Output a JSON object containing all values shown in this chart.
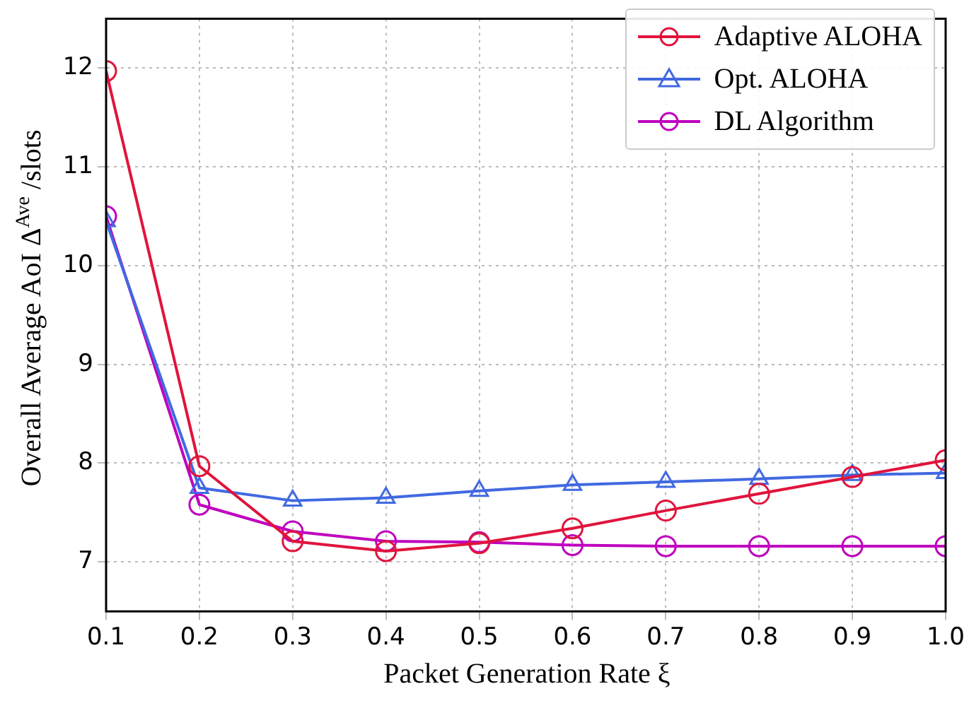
{
  "chart_data": {
    "type": "line",
    "xlabel": "Packet Generation Rate ξ",
    "ylabel": "Overall Average AoI Δ$^{Ave}$ /slots",
    "x": [
      0.1,
      0.2,
      0.3,
      0.4,
      0.5,
      0.6,
      0.7,
      0.8,
      0.9,
      1.0
    ],
    "series": [
      {
        "name": "Adaptive ALOHA",
        "color": "#e0143c",
        "marker": "circle",
        "values": [
          11.97,
          7.97,
          7.21,
          7.11,
          7.19,
          7.34,
          7.52,
          7.69,
          7.86,
          8.03
        ]
      },
      {
        "name": "Opt. ALOHA",
        "color": "#4169e1",
        "marker": "triangle",
        "values": [
          10.45,
          7.75,
          7.62,
          7.65,
          7.72,
          7.78,
          7.81,
          7.84,
          7.88,
          7.9
        ]
      },
      {
        "name": "DL Algorithm",
        "color": "#bf00bf",
        "marker": "circle",
        "values": [
          10.5,
          7.58,
          7.31,
          7.21,
          7.2,
          7.17,
          7.16,
          7.16,
          7.16,
          7.16
        ]
      }
    ],
    "xlim": [
      0.1,
      1.0
    ],
    "xticks": [
      0.1,
      0.2,
      0.3,
      0.4,
      0.5,
      0.6,
      0.7,
      0.8,
      0.9,
      {
        "value": 1.0,
        "label": "1.0"
      }
    ],
    "ylim": [
      6.5,
      12.5
    ],
    "yticks": [
      7,
      8,
      9,
      10,
      11,
      12
    ],
    "grid": true,
    "legend": "top right",
    "line_style": "solid"
  }
}
